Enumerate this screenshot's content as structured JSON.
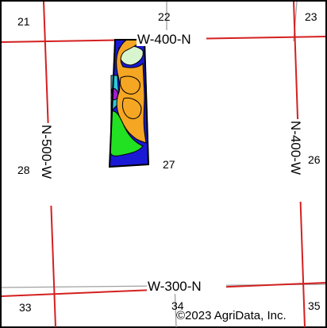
{
  "map": {
    "sections": {
      "s21": "21",
      "s22": "22",
      "s23": "23",
      "s26": "26",
      "s27": "27",
      "s28": "28",
      "s33": "33",
      "s34": "34",
      "s35": "35"
    },
    "roads": {
      "north_road": "W-400-N",
      "south_road": "W-300-N",
      "west_road": "N-500-W",
      "east_road": "N-400-W"
    },
    "copyright": "©2023 AgriData, Inc."
  },
  "colors": {
    "road": "#d42020",
    "section_line": "#a0a0a0",
    "frame": "#000000",
    "soil_blue": "#1a1ad6",
    "soil_orange": "#f5a623",
    "soil_green": "#22e022",
    "soil_light_green": "#d8f5d0",
    "soil_purple": "#a020d0",
    "soil_cyan": "#30c8d8"
  }
}
